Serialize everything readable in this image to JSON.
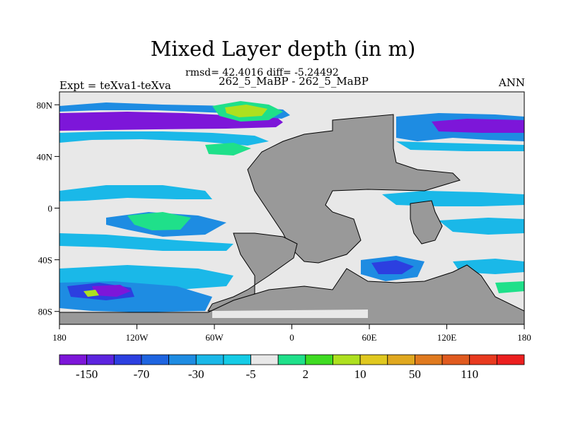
{
  "title": "Mixed Layer depth (in m)",
  "stats_line": "rmsd= 42.4016 diff= -5.24492",
  "cases_line": "262_5_MaBP - 262_5_MaBP",
  "expt_label": "Expt = teXva1-teXva",
  "season": "ANN",
  "colors": {
    "land": "#999999",
    "zero": "#e8e8e8",
    "neg_strong": "#7d16d9",
    "neg_mid": "#1f40e0",
    "neg_light": "#1ab8e8",
    "pos_light": "#1fe08a",
    "pos_mid": "#aee01f"
  },
  "lat_labels": [
    {
      "label": "80N",
      "lat": 80
    },
    {
      "label": "40N",
      "lat": 40
    },
    {
      "label": "0",
      "lat": 0
    },
    {
      "label": "40S",
      "lat": -40
    },
    {
      "label": "80S",
      "lat": -80
    }
  ],
  "lon_labels": [
    {
      "label": "180",
      "lon": -180
    },
    {
      "label": "120W",
      "lon": -120
    },
    {
      "label": "60W",
      "lon": -60
    },
    {
      "label": "0",
      "lon": 0
    },
    {
      "label": "60E",
      "lon": 60
    },
    {
      "label": "120E",
      "lon": 120
    },
    {
      "label": "180",
      "lon": 180
    }
  ],
  "colorbar": {
    "colors": [
      "#7d16d9",
      "#5c24df",
      "#2c3fe0",
      "#1e64e0",
      "#1e8ce2",
      "#1ab8e8",
      "#15cce6",
      "#e8e8e8",
      "#1fe08a",
      "#3fdc22",
      "#aee01f",
      "#e0c81f",
      "#e0a81f",
      "#e07a1f",
      "#e05a1f",
      "#e83a1f",
      "#ec1f1f"
    ],
    "labels": [
      {
        "text": "-150",
        "boundary": 1
      },
      {
        "text": "-70",
        "boundary": 3
      },
      {
        "text": "-30",
        "boundary": 5
      },
      {
        "text": "-5",
        "boundary": 7
      },
      {
        "text": "2",
        "boundary": 9
      },
      {
        "text": "10",
        "boundary": 11
      },
      {
        "text": "50",
        "boundary": 13
      },
      {
        "text": "110",
        "boundary": 15
      }
    ]
  }
}
